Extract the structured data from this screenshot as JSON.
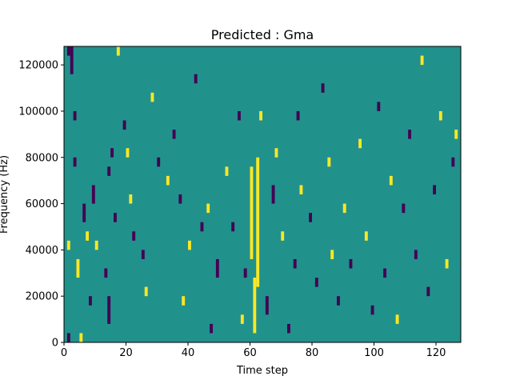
{
  "chart_data": {
    "type": "heatmap",
    "title": "Predicted : Gma",
    "xlabel": "Time step",
    "ylabel": "Frequency (Hz)",
    "xlim": [
      0,
      128
    ],
    "ylim": [
      0,
      128000
    ],
    "x_ticks": [
      0,
      20,
      40,
      60,
      80,
      100,
      120
    ],
    "y_ticks": [
      0,
      20000,
      40000,
      60000,
      80000,
      100000,
      120000
    ],
    "x_tick_labels": [
      "0",
      "20",
      "40",
      "60",
      "80",
      "100",
      "120"
    ],
    "y_tick_labels": [
      "0",
      "20000",
      "40000",
      "60000",
      "80000",
      "100000",
      "120000"
    ],
    "grid": false,
    "legend": "none",
    "colormap": "viridis",
    "value_range": [
      -1,
      1
    ],
    "background_value": 0,
    "colors": {
      "low": "#440154",
      "mid": "#21918c",
      "high": "#fde725"
    },
    "cells": [
      {
        "t": 1,
        "f0": 0,
        "f1": 4000,
        "v": -1
      },
      {
        "t": 1,
        "f0": 40000,
        "f1": 44000,
        "v": 1
      },
      {
        "t": 1,
        "f0": 124000,
        "f1": 128000,
        "v": -1
      },
      {
        "t": 2,
        "f0": 116000,
        "f1": 128000,
        "v": -1
      },
      {
        "t": 3,
        "f0": 76000,
        "f1": 80000,
        "v": -1
      },
      {
        "t": 3,
        "f0": 96000,
        "f1": 100000,
        "v": -1
      },
      {
        "t": 4,
        "f0": 28000,
        "f1": 36000,
        "v": 1
      },
      {
        "t": 5,
        "f0": 0,
        "f1": 4000,
        "v": 1
      },
      {
        "t": 6,
        "f0": 52000,
        "f1": 60000,
        "v": -1
      },
      {
        "t": 7,
        "f0": 44000,
        "f1": 48000,
        "v": 1
      },
      {
        "t": 8,
        "f0": 16000,
        "f1": 20000,
        "v": -1
      },
      {
        "t": 9,
        "f0": 60000,
        "f1": 68000,
        "v": -1
      },
      {
        "t": 10,
        "f0": 40000,
        "f1": 44000,
        "v": 1
      },
      {
        "t": 13,
        "f0": 28000,
        "f1": 32000,
        "v": -1
      },
      {
        "t": 14,
        "f0": 8000,
        "f1": 20000,
        "v": -1
      },
      {
        "t": 14,
        "f0": 72000,
        "f1": 76000,
        "v": -1
      },
      {
        "t": 15,
        "f0": 80000,
        "f1": 84000,
        "v": -1
      },
      {
        "t": 16,
        "f0": 52000,
        "f1": 56000,
        "v": -1
      },
      {
        "t": 17,
        "f0": 124000,
        "f1": 128000,
        "v": 1
      },
      {
        "t": 19,
        "f0": 92000,
        "f1": 96000,
        "v": -1
      },
      {
        "t": 20,
        "f0": 80000,
        "f1": 84000,
        "v": 1
      },
      {
        "t": 21,
        "f0": 60000,
        "f1": 64000,
        "v": 1
      },
      {
        "t": 22,
        "f0": 44000,
        "f1": 48000,
        "v": -1
      },
      {
        "t": 25,
        "f0": 36000,
        "f1": 40000,
        "v": -1
      },
      {
        "t": 26,
        "f0": 20000,
        "f1": 24000,
        "v": 1
      },
      {
        "t": 28,
        "f0": 104000,
        "f1": 108000,
        "v": 1
      },
      {
        "t": 30,
        "f0": 76000,
        "f1": 80000,
        "v": -1
      },
      {
        "t": 33,
        "f0": 68000,
        "f1": 72000,
        "v": 1
      },
      {
        "t": 35,
        "f0": 88000,
        "f1": 92000,
        "v": -1
      },
      {
        "t": 37,
        "f0": 60000,
        "f1": 64000,
        "v": -1
      },
      {
        "t": 38,
        "f0": 16000,
        "f1": 20000,
        "v": 1
      },
      {
        "t": 40,
        "f0": 40000,
        "f1": 44000,
        "v": 1
      },
      {
        "t": 42,
        "f0": 112000,
        "f1": 116000,
        "v": -1
      },
      {
        "t": 44,
        "f0": 48000,
        "f1": 52000,
        "v": -1
      },
      {
        "t": 46,
        "f0": 56000,
        "f1": 60000,
        "v": 1
      },
      {
        "t": 47,
        "f0": 4000,
        "f1": 8000,
        "v": -1
      },
      {
        "t": 49,
        "f0": 28000,
        "f1": 36000,
        "v": -1
      },
      {
        "t": 52,
        "f0": 72000,
        "f1": 76000,
        "v": 1
      },
      {
        "t": 54,
        "f0": 48000,
        "f1": 52000,
        "v": -1
      },
      {
        "t": 56,
        "f0": 96000,
        "f1": 100000,
        "v": -1
      },
      {
        "t": 57,
        "f0": 8000,
        "f1": 12000,
        "v": 1
      },
      {
        "t": 58,
        "f0": 28000,
        "f1": 32000,
        "v": -1
      },
      {
        "t": 60,
        "f0": 36000,
        "f1": 76000,
        "v": 1
      },
      {
        "t": 61,
        "f0": 4000,
        "f1": 28000,
        "v": 1
      },
      {
        "t": 62,
        "f0": 24000,
        "f1": 80000,
        "v": 1
      },
      {
        "t": 63,
        "f0": 96000,
        "f1": 100000,
        "v": 1
      },
      {
        "t": 65,
        "f0": 12000,
        "f1": 20000,
        "v": -1
      },
      {
        "t": 67,
        "f0": 60000,
        "f1": 68000,
        "v": -1
      },
      {
        "t": 68,
        "f0": 80000,
        "f1": 84000,
        "v": 1
      },
      {
        "t": 70,
        "f0": 44000,
        "f1": 48000,
        "v": 1
      },
      {
        "t": 72,
        "f0": 4000,
        "f1": 8000,
        "v": -1
      },
      {
        "t": 74,
        "f0": 32000,
        "f1": 36000,
        "v": -1
      },
      {
        "t": 75,
        "f0": 96000,
        "f1": 100000,
        "v": -1
      },
      {
        "t": 76,
        "f0": 64000,
        "f1": 68000,
        "v": 1
      },
      {
        "t": 79,
        "f0": 52000,
        "f1": 56000,
        "v": -1
      },
      {
        "t": 81,
        "f0": 24000,
        "f1": 28000,
        "v": -1
      },
      {
        "t": 83,
        "f0": 108000,
        "f1": 112000,
        "v": -1
      },
      {
        "t": 85,
        "f0": 76000,
        "f1": 80000,
        "v": 1
      },
      {
        "t": 86,
        "f0": 36000,
        "f1": 40000,
        "v": 1
      },
      {
        "t": 88,
        "f0": 16000,
        "f1": 20000,
        "v": -1
      },
      {
        "t": 90,
        "f0": 56000,
        "f1": 60000,
        "v": 1
      },
      {
        "t": 92,
        "f0": 32000,
        "f1": 36000,
        "v": -1
      },
      {
        "t": 95,
        "f0": 84000,
        "f1": 88000,
        "v": 1
      },
      {
        "t": 97,
        "f0": 44000,
        "f1": 48000,
        "v": 1
      },
      {
        "t": 99,
        "f0": 12000,
        "f1": 16000,
        "v": -1
      },
      {
        "t": 101,
        "f0": 100000,
        "f1": 104000,
        "v": -1
      },
      {
        "t": 103,
        "f0": 28000,
        "f1": 32000,
        "v": -1
      },
      {
        "t": 105,
        "f0": 68000,
        "f1": 72000,
        "v": 1
      },
      {
        "t": 107,
        "f0": 8000,
        "f1": 12000,
        "v": 1
      },
      {
        "t": 109,
        "f0": 56000,
        "f1": 60000,
        "v": -1
      },
      {
        "t": 111,
        "f0": 88000,
        "f1": 92000,
        "v": -1
      },
      {
        "t": 113,
        "f0": 36000,
        "f1": 40000,
        "v": -1
      },
      {
        "t": 115,
        "f0": 120000,
        "f1": 124000,
        "v": 1
      },
      {
        "t": 117,
        "f0": 20000,
        "f1": 24000,
        "v": -1
      },
      {
        "t": 119,
        "f0": 64000,
        "f1": 68000,
        "v": -1
      },
      {
        "t": 121,
        "f0": 96000,
        "f1": 100000,
        "v": 1
      },
      {
        "t": 123,
        "f0": 32000,
        "f1": 36000,
        "v": 1
      },
      {
        "t": 125,
        "f0": 76000,
        "f1": 80000,
        "v": -1
      },
      {
        "t": 126,
        "f0": 88000,
        "f1": 92000,
        "v": 1
      }
    ]
  }
}
